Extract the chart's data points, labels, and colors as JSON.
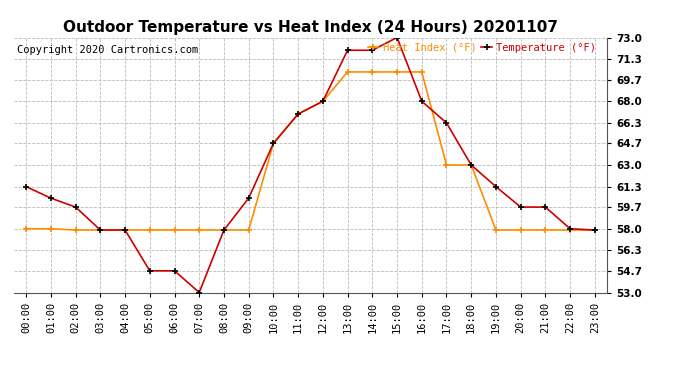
{
  "title": "Outdoor Temperature vs Heat Index (24 Hours) 20201107",
  "copyright": "Copyright 2020 Cartronics.com",
  "legend_heat": "Heat Index (°F)",
  "legend_temp": "Temperature (°F)",
  "hours": [
    0,
    1,
    2,
    3,
    4,
    5,
    6,
    7,
    8,
    9,
    10,
    11,
    12,
    13,
    14,
    15,
    16,
    17,
    18,
    19,
    20,
    21,
    22,
    23
  ],
  "temperature": [
    61.3,
    60.4,
    59.7,
    57.9,
    57.9,
    54.7,
    54.7,
    53.0,
    57.9,
    60.4,
    64.7,
    67.0,
    68.0,
    72.0,
    72.0,
    73.0,
    68.0,
    66.3,
    63.0,
    61.3,
    59.7,
    59.7,
    58.0,
    57.9
  ],
  "heat_index": [
    58.0,
    58.0,
    57.9,
    57.9,
    57.9,
    57.9,
    57.9,
    57.9,
    57.9,
    57.9,
    64.7,
    67.0,
    68.0,
    70.3,
    70.3,
    70.3,
    70.3,
    63.0,
    63.0,
    57.9,
    57.9,
    57.9,
    57.9,
    57.9
  ],
  "ylim_min": 53.0,
  "ylim_max": 73.0,
  "yticks": [
    53.0,
    54.7,
    56.3,
    58.0,
    59.7,
    61.3,
    63.0,
    64.7,
    66.3,
    68.0,
    69.7,
    71.3,
    73.0
  ],
  "temp_color": "#cc0000",
  "heat_color": "#ff8c00",
  "marker_color": "#000000",
  "grid_color": "#bbbbbb",
  "background_color": "#ffffff",
  "title_fontsize": 11,
  "label_fontsize": 7.5,
  "tick_fontsize": 7.5,
  "copyright_fontsize": 7.5
}
